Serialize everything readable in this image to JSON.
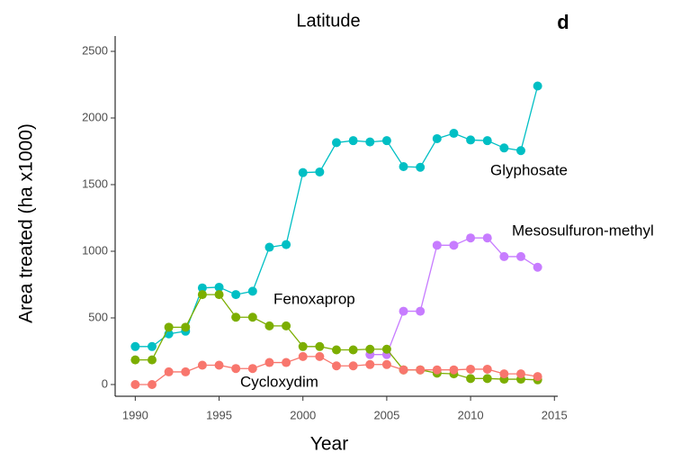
{
  "chart_data": {
    "type": "line",
    "title": "Latitude",
    "panel_label": "d",
    "x_label": "Year",
    "y_label": "Area treated (ha x1000)",
    "x": [
      1990,
      1991,
      1992,
      1993,
      1994,
      1995,
      1996,
      1997,
      1998,
      1999,
      2000,
      2001,
      2002,
      2003,
      2004,
      2005,
      2006,
      2007,
      2008,
      2009,
      2010,
      2011,
      2012,
      2013,
      2014
    ],
    "series": [
      {
        "name": "Glyphosate",
        "color": "#00BFC4",
        "values": [
          285,
          285,
          380,
          400,
          725,
          730,
          675,
          700,
          1030,
          1050,
          1590,
          1595,
          1815,
          1830,
          1820,
          1830,
          1635,
          1630,
          1845,
          1885,
          1835,
          1830,
          1775,
          1755,
          2240
        ]
      },
      {
        "name": "Mesosulfuron-methyl",
        "color": "#C77CFF",
        "values": [
          null,
          null,
          null,
          null,
          null,
          null,
          null,
          null,
          null,
          null,
          null,
          null,
          null,
          null,
          225,
          225,
          550,
          550,
          1045,
          1045,
          1100,
          1100,
          960,
          960,
          880
        ]
      },
      {
        "name": "Fenoxaprop",
        "color": "#7CAE00",
        "values": [
          185,
          185,
          430,
          430,
          675,
          675,
          505,
          505,
          440,
          440,
          285,
          285,
          260,
          260,
          265,
          265,
          110,
          110,
          85,
          80,
          45,
          45,
          40,
          40,
          35
        ]
      },
      {
        "name": "Cycloxydim",
        "color": "#F8766D",
        "values": [
          0,
          0,
          95,
          95,
          145,
          145,
          120,
          120,
          165,
          165,
          210,
          210,
          140,
          140,
          150,
          150,
          110,
          110,
          110,
          110,
          115,
          115,
          80,
          80,
          60
        ]
      }
    ],
    "xlim": [
      1988.8,
      2015.2
    ],
    "ylim": [
      -88,
      2615
    ],
    "xticks": [
      1990,
      1995,
      2000,
      2005,
      2010,
      2015
    ],
    "yticks": [
      0,
      500,
      1000,
      1500,
      2000,
      2500
    ],
    "grid": false
  }
}
